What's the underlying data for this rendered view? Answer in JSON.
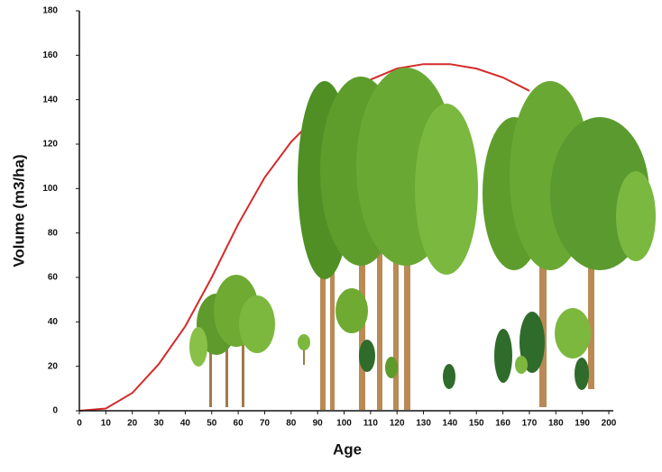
{
  "chart_data": {
    "type": "line",
    "x_label": "Age",
    "y_label": "Volume (m3/ha)",
    "x": [
      0,
      10,
      20,
      30,
      40,
      50,
      60,
      70,
      80,
      90,
      100,
      110,
      120,
      130,
      140,
      150,
      160,
      170
    ],
    "values": [
      0,
      1,
      8,
      21,
      38,
      60,
      84,
      105,
      121,
      133,
      143,
      149,
      154,
      156,
      156,
      154,
      150,
      144
    ],
    "color": "#d42a2a",
    "xlim": [
      0,
      200
    ],
    "xticks": [
      0,
      10,
      20,
      30,
      40,
      50,
      60,
      70,
      80,
      90,
      100,
      110,
      120,
      130,
      140,
      150,
      160,
      170,
      180,
      190,
      200
    ],
    "ylim": [
      0,
      180
    ],
    "yticks": [
      0,
      20,
      40,
      60,
      80,
      100,
      120,
      140,
      160,
      180
    ],
    "grid": false
  }
}
